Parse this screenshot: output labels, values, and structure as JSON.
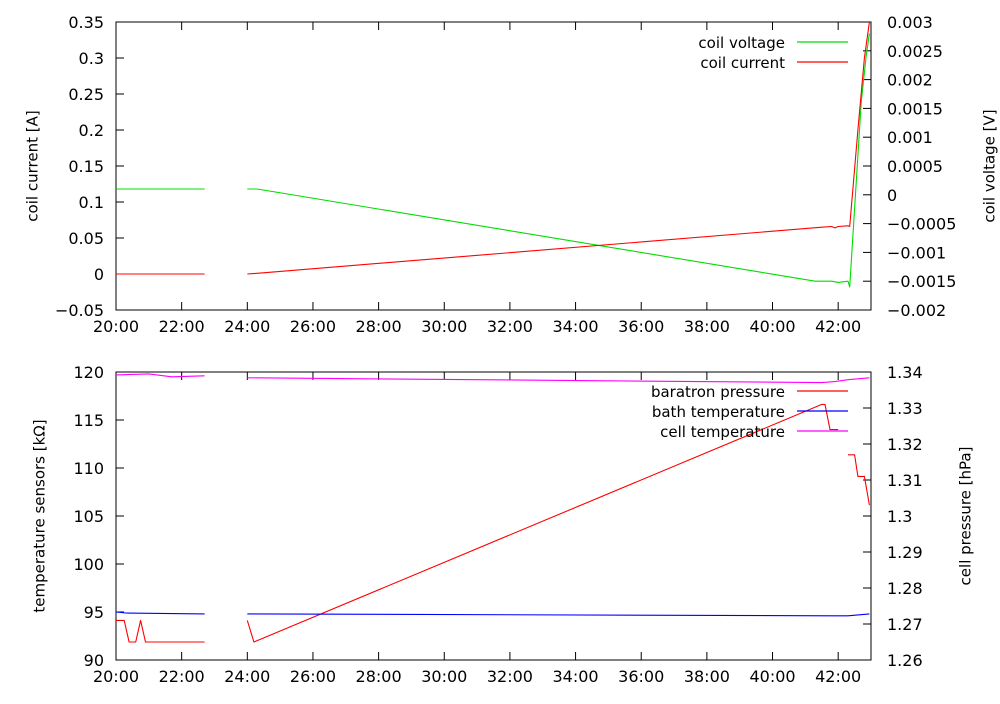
{
  "chart_data": [
    {
      "type": "line",
      "x_axis": {
        "ticks": [
          "20:00",
          "22:00",
          "24:00",
          "26:00",
          "28:00",
          "30:00",
          "32:00",
          "34:00",
          "36:00",
          "38:00",
          "40:00",
          "42:00"
        ],
        "tick_hours": [
          20,
          22,
          24,
          26,
          28,
          30,
          32,
          34,
          36,
          38,
          40,
          42
        ],
        "range_hours": [
          20,
          43
        ]
      },
      "y_left": {
        "label": "coil current [A]",
        "range": [
          -0.05,
          0.35
        ],
        "ticks": [
          "−0.05",
          "0",
          "0.05",
          "0.1",
          "0.15",
          "0.2",
          "0.25",
          "0.3",
          "0.35"
        ],
        "tick_values": [
          -0.05,
          0,
          0.05,
          0.1,
          0.15,
          0.2,
          0.25,
          0.3,
          0.35
        ]
      },
      "y_right": {
        "label": "coil voltage [V]",
        "range": [
          -0.002,
          0.003
        ],
        "ticks": [
          "−0.002",
          "−0.0015",
          "−0.001",
          "−0.0005",
          "0",
          "0.0005",
          "0.001",
          "0.0015",
          "0.002",
          "0.0025",
          "0.003"
        ],
        "tick_values": [
          -0.002,
          -0.0015,
          -0.001,
          -0.0005,
          0,
          0.0005,
          0.001,
          0.0015,
          0.002,
          0.0025,
          0.003
        ]
      },
      "legend_position": "top-right",
      "series": [
        {
          "name": "coil voltage",
          "axis": "right",
          "color": "#00dd00",
          "segments": [
            [
              [
                20.0,
                0.0001
              ],
              [
                22.7,
                0.0001
              ]
            ],
            [
              [
                24.0,
                0.0001
              ],
              [
                24.3,
                0.0001
              ],
              [
                41.3,
                -0.0015
              ],
              [
                41.8,
                -0.0015
              ],
              [
                42.0,
                -0.00152
              ],
              [
                42.3,
                -0.0015
              ],
              [
                42.35,
                -0.0016
              ],
              [
                42.7,
                0.0016
              ],
              [
                42.85,
                0.0024
              ],
              [
                42.95,
                0.0028
              ]
            ]
          ]
        },
        {
          "name": "coil current",
          "axis": "left",
          "color": "#ff0000",
          "segments": [
            [
              [
                20.0,
                0.0
              ],
              [
                22.7,
                0.0
              ]
            ],
            [
              [
                24.0,
                0.0
              ],
              [
                24.3,
                0.001
              ],
              [
                41.5,
                0.065
              ],
              [
                41.8,
                0.066
              ],
              [
                41.9,
                0.064
              ],
              [
                42.0,
                0.066
              ],
              [
                42.3,
                0.067
              ],
              [
                42.35,
                0.066
              ],
              [
                42.6,
                0.2
              ],
              [
                42.8,
                0.3
              ],
              [
                42.95,
                0.35
              ]
            ]
          ]
        }
      ]
    },
    {
      "type": "line",
      "x_axis": {
        "ticks": [
          "20:00",
          "22:00",
          "24:00",
          "26:00",
          "28:00",
          "30:00",
          "32:00",
          "34:00",
          "36:00",
          "38:00",
          "40:00",
          "42:00"
        ],
        "tick_hours": [
          20,
          22,
          24,
          26,
          28,
          30,
          32,
          34,
          36,
          38,
          40,
          42
        ],
        "range_hours": [
          20,
          43
        ]
      },
      "y_left": {
        "label": "temperature sensors [kΩ]",
        "range": [
          90,
          120
        ],
        "ticks": [
          "90",
          "95",
          "100",
          "105",
          "110",
          "115",
          "120"
        ],
        "tick_values": [
          90,
          95,
          100,
          105,
          110,
          115,
          120
        ]
      },
      "y_right": {
        "label": "cell pressure [hPa]",
        "range": [
          1.26,
          1.34
        ],
        "ticks": [
          "1.26",
          "1.27",
          "1.28",
          "1.29",
          "1.3",
          "1.31",
          "1.32",
          "1.33",
          "1.34"
        ],
        "tick_values": [
          1.26,
          1.27,
          1.28,
          1.29,
          1.3,
          1.31,
          1.32,
          1.33,
          1.34
        ]
      },
      "legend_position": "top-right",
      "series": [
        {
          "name": "baratron pressure",
          "axis": "right",
          "color": "#ff0000",
          "segments": [
            [
              [
                20.0,
                1.271
              ],
              [
                20.25,
                1.271
              ],
              [
                20.4,
                1.265
              ],
              [
                20.6,
                1.265
              ],
              [
                20.75,
                1.271
              ],
              [
                20.9,
                1.265
              ],
              [
                22.7,
                1.265
              ]
            ],
            [
              [
                24.0,
                1.271
              ],
              [
                24.2,
                1.265
              ],
              [
                41.5,
                1.331
              ],
              [
                41.6,
                1.331
              ],
              [
                41.75,
                1.324
              ],
              [
                42.0,
                1.324
              ]
            ],
            [
              [
                42.3,
                1.317
              ],
              [
                42.5,
                1.317
              ],
              [
                42.6,
                1.311
              ],
              [
                42.8,
                1.311
              ],
              [
                42.95,
                1.303
              ]
            ]
          ]
        },
        {
          "name": "bath temperature",
          "axis": "left",
          "color": "#0000ff",
          "segments": [
            [
              [
                20.0,
                95.0
              ],
              [
                20.3,
                94.9
              ],
              [
                22.7,
                94.8
              ]
            ],
            [
              [
                24.0,
                94.8
              ],
              [
                41.8,
                94.6
              ],
              [
                42.3,
                94.6
              ],
              [
                42.95,
                94.8
              ]
            ]
          ]
        },
        {
          "name": "cell temperature",
          "axis": "left",
          "color": "#ff00ff",
          "segments": [
            [
              [
                20.0,
                119.7
              ],
              [
                21.0,
                119.8
              ],
              [
                21.7,
                119.5
              ],
              [
                22.7,
                119.6
              ]
            ],
            [
              [
                24.0,
                119.4
              ],
              [
                41.5,
                118.9
              ],
              [
                41.9,
                119.0
              ],
              [
                42.3,
                119.2
              ],
              [
                42.95,
                119.4
              ]
            ]
          ]
        }
      ]
    }
  ]
}
